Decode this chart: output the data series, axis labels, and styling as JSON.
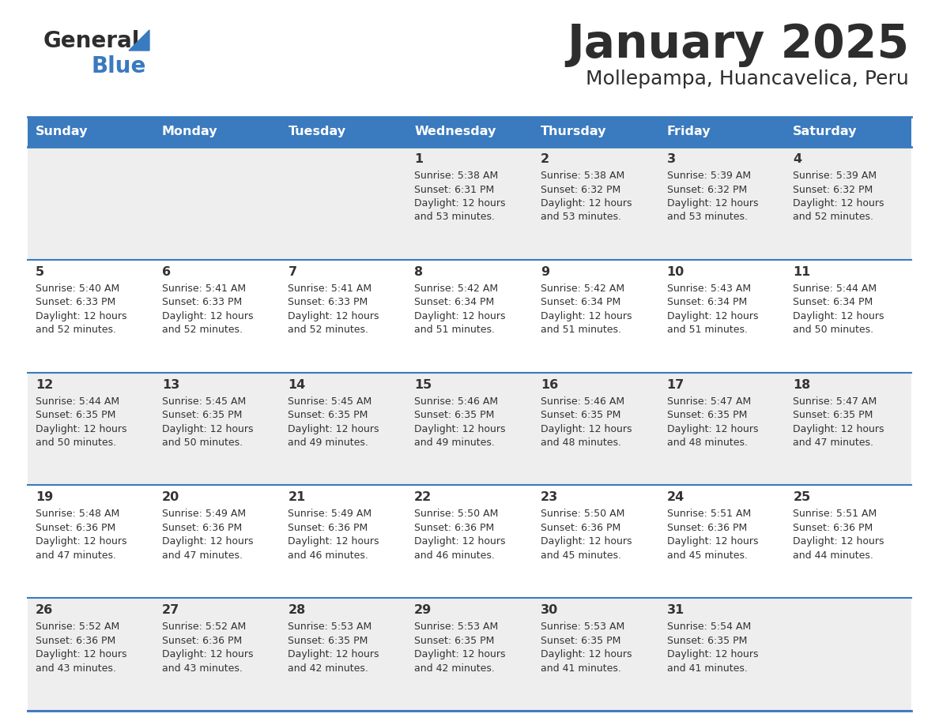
{
  "title": "January 2025",
  "subtitle": "Mollepampa, Huancavelica, Peru",
  "title_color": "#2d2d2d",
  "subtitle_color": "#2d2d2d",
  "header_bg_color": "#3a7abf",
  "header_text_color": "#ffffff",
  "row_bg_even": "#eeeeee",
  "row_bg_odd": "#ffffff",
  "cell_text_color": "#333333",
  "border_color": "#3a7abf",
  "days_of_week": [
    "Sunday",
    "Monday",
    "Tuesday",
    "Wednesday",
    "Thursday",
    "Friday",
    "Saturday"
  ],
  "calendar": [
    [
      {
        "day": "",
        "sunrise": "",
        "sunset": "",
        "daylight": ""
      },
      {
        "day": "",
        "sunrise": "",
        "sunset": "",
        "daylight": ""
      },
      {
        "day": "",
        "sunrise": "",
        "sunset": "",
        "daylight": ""
      },
      {
        "day": "1",
        "sunrise": "5:38 AM",
        "sunset": "6:31 PM",
        "daylight": "12 hours and 53 minutes."
      },
      {
        "day": "2",
        "sunrise": "5:38 AM",
        "sunset": "6:32 PM",
        "daylight": "12 hours and 53 minutes."
      },
      {
        "day": "3",
        "sunrise": "5:39 AM",
        "sunset": "6:32 PM",
        "daylight": "12 hours and 53 minutes."
      },
      {
        "day": "4",
        "sunrise": "5:39 AM",
        "sunset": "6:32 PM",
        "daylight": "12 hours and 52 minutes."
      }
    ],
    [
      {
        "day": "5",
        "sunrise": "5:40 AM",
        "sunset": "6:33 PM",
        "daylight": "12 hours and 52 minutes."
      },
      {
        "day": "6",
        "sunrise": "5:41 AM",
        "sunset": "6:33 PM",
        "daylight": "12 hours and 52 minutes."
      },
      {
        "day": "7",
        "sunrise": "5:41 AM",
        "sunset": "6:33 PM",
        "daylight": "12 hours and 52 minutes."
      },
      {
        "day": "8",
        "sunrise": "5:42 AM",
        "sunset": "6:34 PM",
        "daylight": "12 hours and 51 minutes."
      },
      {
        "day": "9",
        "sunrise": "5:42 AM",
        "sunset": "6:34 PM",
        "daylight": "12 hours and 51 minutes."
      },
      {
        "day": "10",
        "sunrise": "5:43 AM",
        "sunset": "6:34 PM",
        "daylight": "12 hours and 51 minutes."
      },
      {
        "day": "11",
        "sunrise": "5:44 AM",
        "sunset": "6:34 PM",
        "daylight": "12 hours and 50 minutes."
      }
    ],
    [
      {
        "day": "12",
        "sunrise": "5:44 AM",
        "sunset": "6:35 PM",
        "daylight": "12 hours and 50 minutes."
      },
      {
        "day": "13",
        "sunrise": "5:45 AM",
        "sunset": "6:35 PM",
        "daylight": "12 hours and 50 minutes."
      },
      {
        "day": "14",
        "sunrise": "5:45 AM",
        "sunset": "6:35 PM",
        "daylight": "12 hours and 49 minutes."
      },
      {
        "day": "15",
        "sunrise": "5:46 AM",
        "sunset": "6:35 PM",
        "daylight": "12 hours and 49 minutes."
      },
      {
        "day": "16",
        "sunrise": "5:46 AM",
        "sunset": "6:35 PM",
        "daylight": "12 hours and 48 minutes."
      },
      {
        "day": "17",
        "sunrise": "5:47 AM",
        "sunset": "6:35 PM",
        "daylight": "12 hours and 48 minutes."
      },
      {
        "day": "18",
        "sunrise": "5:47 AM",
        "sunset": "6:35 PM",
        "daylight": "12 hours and 47 minutes."
      }
    ],
    [
      {
        "day": "19",
        "sunrise": "5:48 AM",
        "sunset": "6:36 PM",
        "daylight": "12 hours and 47 minutes."
      },
      {
        "day": "20",
        "sunrise": "5:49 AM",
        "sunset": "6:36 PM",
        "daylight": "12 hours and 47 minutes."
      },
      {
        "day": "21",
        "sunrise": "5:49 AM",
        "sunset": "6:36 PM",
        "daylight": "12 hours and 46 minutes."
      },
      {
        "day": "22",
        "sunrise": "5:50 AM",
        "sunset": "6:36 PM",
        "daylight": "12 hours and 46 minutes."
      },
      {
        "day": "23",
        "sunrise": "5:50 AM",
        "sunset": "6:36 PM",
        "daylight": "12 hours and 45 minutes."
      },
      {
        "day": "24",
        "sunrise": "5:51 AM",
        "sunset": "6:36 PM",
        "daylight": "12 hours and 45 minutes."
      },
      {
        "day": "25",
        "sunrise": "5:51 AM",
        "sunset": "6:36 PM",
        "daylight": "12 hours and 44 minutes."
      }
    ],
    [
      {
        "day": "26",
        "sunrise": "5:52 AM",
        "sunset": "6:36 PM",
        "daylight": "12 hours and 43 minutes."
      },
      {
        "day": "27",
        "sunrise": "5:52 AM",
        "sunset": "6:36 PM",
        "daylight": "12 hours and 43 minutes."
      },
      {
        "day": "28",
        "sunrise": "5:53 AM",
        "sunset": "6:35 PM",
        "daylight": "12 hours and 42 minutes."
      },
      {
        "day": "29",
        "sunrise": "5:53 AM",
        "sunset": "6:35 PM",
        "daylight": "12 hours and 42 minutes."
      },
      {
        "day": "30",
        "sunrise": "5:53 AM",
        "sunset": "6:35 PM",
        "daylight": "12 hours and 41 minutes."
      },
      {
        "day": "31",
        "sunrise": "5:54 AM",
        "sunset": "6:35 PM",
        "daylight": "12 hours and 41 minutes."
      },
      {
        "day": "",
        "sunrise": "",
        "sunset": "",
        "daylight": ""
      }
    ]
  ],
  "logo_general_color": "#2d2d2d",
  "logo_blue_color": "#3a7abf",
  "logo_triangle_color": "#3a7abf"
}
